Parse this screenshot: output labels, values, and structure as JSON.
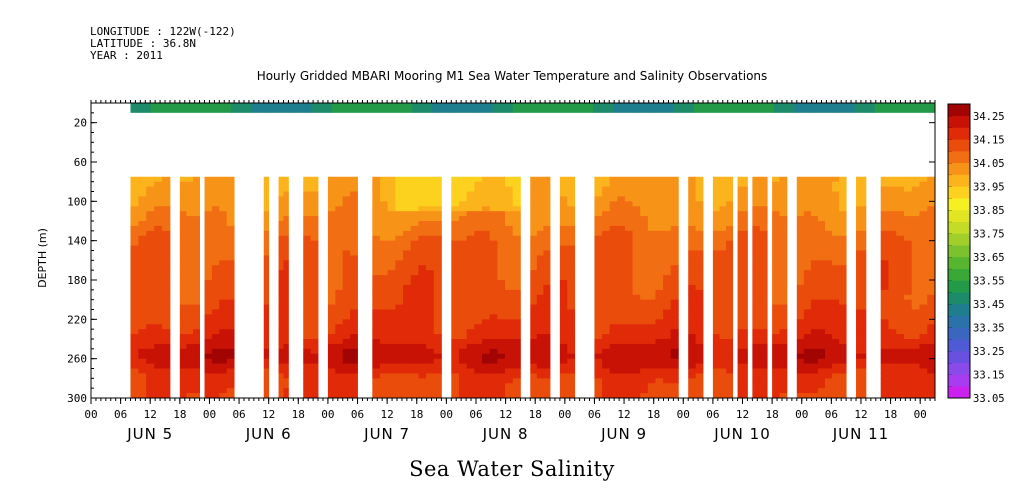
{
  "meta_lines": [
    "LONGITUDE : 122W(-122)",
    "LATITUDE : 36.8N",
    "YEAR : 2011"
  ],
  "chart_data": {
    "type": "heatmap",
    "title": "Hourly Gridded MBARI Mooring M1 Sea Water Temperature and Salinity Observations",
    "xlabel": "",
    "ylabel": "DEPTH (m)",
    "caption": "Sea Water Salinity",
    "x_hour_range": [
      0,
      171
    ],
    "x_hour_ticks": [
      0,
      6,
      12,
      18,
      24,
      30,
      36,
      42,
      48,
      54,
      60,
      66,
      72,
      78,
      84,
      90,
      96,
      102,
      108,
      114,
      120,
      126,
      132,
      138,
      144,
      150,
      156,
      162,
      168
    ],
    "x_tick_labels": [
      "00",
      "06",
      "12",
      "18",
      "00",
      "06",
      "12",
      "18",
      "00",
      "06",
      "12",
      "18",
      "00",
      "06",
      "12",
      "18",
      "00",
      "06",
      "12",
      "18",
      "00",
      "06",
      "12",
      "18",
      "00",
      "06",
      "12",
      "18",
      "00"
    ],
    "day_labels": [
      "JUN  5",
      "JUN  6",
      "JUN  7",
      "JUN  8",
      "JUN  9",
      "JUN 10",
      "JUN 11"
    ],
    "ylim": [
      300,
      0
    ],
    "y_ticks": [
      20,
      60,
      100,
      140,
      180,
      220,
      260,
      300
    ],
    "y_tick_labels": [
      "20",
      "60",
      "100",
      "140",
      "180",
      "220",
      "260",
      "300"
    ],
    "colorbar": {
      "levels": [
        33.05,
        33.1,
        33.15,
        33.2,
        33.25,
        33.3,
        33.35,
        33.4,
        33.45,
        33.5,
        33.55,
        33.6,
        33.65,
        33.7,
        33.75,
        33.8,
        33.85,
        33.9,
        33.95,
        34.0,
        34.05,
        34.1,
        34.15,
        34.2,
        34.25,
        34.3
      ],
      "label_values": [
        "33.05",
        "33.15",
        "33.25",
        "33.35",
        "33.45",
        "33.55",
        "33.65",
        "33.75",
        "33.85",
        "33.95",
        "34.05",
        "34.15",
        "34.25"
      ],
      "colors": [
        "#cc22ee",
        "#a83cf0",
        "#8a4aea",
        "#6a50e0",
        "#4f5ad4",
        "#3a66c0",
        "#2a72a8",
        "#1f7e8e",
        "#1d8a6a",
        "#239a48",
        "#3aa836",
        "#58b530",
        "#7cc22e",
        "#a0cf2a",
        "#c4dc26",
        "#e2e622",
        "#f6ef22",
        "#fcd21e",
        "#fbb41c",
        "#f79418",
        "#f26e12",
        "#ea4c0c",
        "#e02a08",
        "#c81206",
        "#a20404"
      ]
    },
    "surface_band": {
      "depth_range": [
        0,
        10
      ],
      "hour_range": [
        0,
        171
      ],
      "value_range": [
        33.42,
        33.55
      ]
    },
    "deep_field": {
      "depth_range": [
        75,
        300
      ],
      "missing_hours": [
        [
          0,
          8
        ],
        [
          16,
          18
        ],
        [
          21,
          23
        ],
        [
          28,
          35
        ],
        [
          36,
          35
        ],
        [
          38,
          39
        ],
        [
          41,
          43
        ],
        [
          46,
          48
        ],
        [
          54,
          57
        ],
        [
          71,
          73
        ],
        [
          87,
          89
        ],
        [
          93,
          95
        ],
        [
          98,
          102
        ],
        [
          119,
          121
        ],
        [
          124,
          126
        ],
        [
          130,
          130
        ],
        [
          133,
          134
        ],
        [
          137,
          138
        ],
        [
          141,
          143
        ],
        [
          153,
          155
        ],
        [
          157,
          160
        ],
        [
          174,
          184
        ],
        [
          186,
          188
        ],
        [
          189,
          190
        ]
      ],
      "data_hours": [
        [
          8,
          16
        ],
        [
          18,
          22
        ],
        [
          23,
          29
        ],
        [
          35,
          36
        ],
        [
          38,
          39
        ],
        [
          39,
          40
        ],
        [
          43,
          46
        ],
        [
          48,
          54
        ],
        [
          57,
          71
        ],
        [
          73,
          87
        ],
        [
          89,
          93
        ],
        [
          95,
          98
        ],
        [
          102,
          119
        ],
        [
          121,
          124
        ],
        [
          126,
          130
        ],
        [
          131,
          133
        ],
        [
          134,
          137
        ],
        [
          138,
          141
        ],
        [
          143,
          153
        ],
        [
          155,
          157
        ],
        [
          160,
          174
        ],
        [
          184,
          186
        ],
        [
          188,
          189
        ]
      ],
      "profile_depths": [
        80,
        100,
        120,
        140,
        160,
        180,
        200,
        220,
        240,
        250,
        260,
        270,
        280,
        300
      ],
      "profile_values": [
        34.0,
        34.02,
        34.05,
        34.09,
        34.11,
        34.12,
        34.13,
        34.15,
        34.18,
        34.22,
        34.23,
        34.19,
        34.15,
        34.14
      ]
    }
  }
}
